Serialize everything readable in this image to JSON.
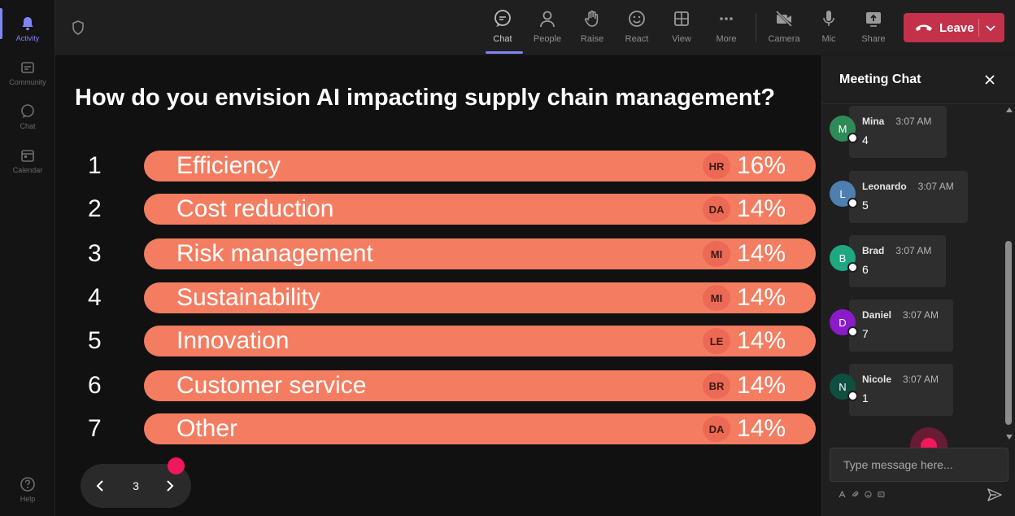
{
  "rail": {
    "items": [
      {
        "label": "Activity",
        "icon": "bell-icon",
        "active": true
      },
      {
        "label": "Community",
        "icon": "community-icon"
      },
      {
        "label": "Chat",
        "icon": "chat-icon"
      },
      {
        "label": "Calendar",
        "icon": "calendar-icon"
      }
    ],
    "help_label": "Help"
  },
  "topbar": {
    "buttons": [
      {
        "label": "Chat",
        "icon": "chat-icon",
        "active": true
      },
      {
        "label": "People",
        "icon": "people-icon"
      },
      {
        "label": "Raise",
        "icon": "hand-icon"
      },
      {
        "label": "React",
        "icon": "smiley-icon"
      },
      {
        "label": "View",
        "icon": "grid-icon"
      },
      {
        "label": "More",
        "icon": "more-icon"
      },
      {
        "label": "Camera",
        "icon": "camera-off-icon"
      },
      {
        "label": "Mic",
        "icon": "mic-icon"
      },
      {
        "label": "Share",
        "icon": "share-icon"
      }
    ],
    "leave_label": "Leave",
    "leave_color": "#c4314b"
  },
  "poll": {
    "question": "How do you envision AI impacting supply chain management?",
    "bar_color": "#f47d61",
    "options": [
      {
        "num": "1",
        "label": "Efficiency",
        "avatar": "HR",
        "pct": "16%"
      },
      {
        "num": "2",
        "label": "Cost reduction",
        "avatar": "DA",
        "pct": "14%"
      },
      {
        "num": "3",
        "label": "Risk management",
        "avatar": "MI",
        "pct": "14%"
      },
      {
        "num": "4",
        "label": "Sustainability",
        "avatar": "MI",
        "pct": "14%"
      },
      {
        "num": "5",
        "label": "Innovation",
        "avatar": "LE",
        "pct": "14%"
      },
      {
        "num": "6",
        "label": "Customer service",
        "avatar": "BR",
        "pct": "14%"
      },
      {
        "num": "7",
        "label": "Other",
        "avatar": "DA",
        "pct": "14%"
      }
    ],
    "page": "3"
  },
  "chat": {
    "title": "Meeting Chat",
    "messages": [
      {
        "initial": "M",
        "name": "Mina",
        "time": "3:07 AM",
        "text": "4",
        "color": "#2e8b57"
      },
      {
        "initial": "L",
        "name": "Leonardo",
        "time": "3:07 AM",
        "text": "5",
        "color": "#4f7fb0"
      },
      {
        "initial": "B",
        "name": "Brad",
        "time": "3:07 AM",
        "text": "6",
        "color": "#1ea882"
      },
      {
        "initial": "D",
        "name": "Daniel",
        "time": "3:07 AM",
        "text": "7",
        "color": "#8a1bc9"
      },
      {
        "initial": "N",
        "name": "Nicole",
        "time": "3:07 AM",
        "text": "1",
        "color": "#0f4f3f"
      }
    ],
    "input_placeholder": "Type message here..."
  }
}
